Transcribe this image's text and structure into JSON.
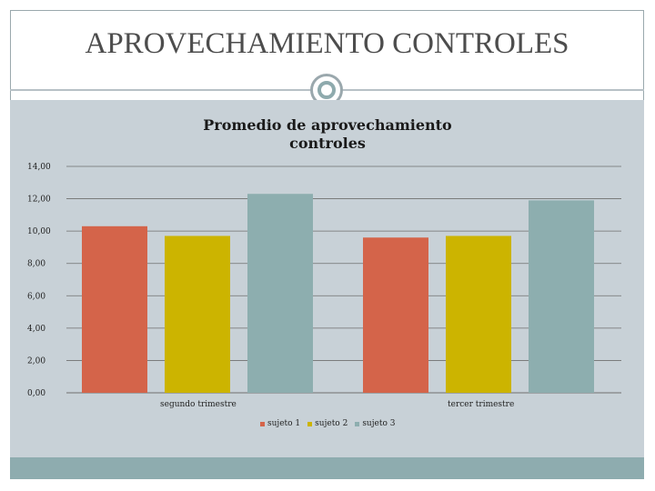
{
  "slide": {
    "title": "APROVECHAMIENTO CONTROLES"
  },
  "chart_data": {
    "type": "bar",
    "title": "Promedio de aprovechamiento controles",
    "categories": [
      "segundo trimestre",
      "tercer trimestre"
    ],
    "series": [
      {
        "name": "sujeto 1",
        "color": "#d4644a",
        "values": [
          10.3,
          9.6
        ]
      },
      {
        "name": "sujeto 2",
        "color": "#ccb400",
        "values": [
          9.7,
          9.7
        ]
      },
      {
        "name": "sujeto 3",
        "color": "#8daeaf",
        "values": [
          12.3,
          11.9
        ]
      }
    ],
    "yticks": [
      "0,00",
      "2,00",
      "4,00",
      "6,00",
      "8,00",
      "10,00",
      "12,00",
      "14,00"
    ],
    "ylim": [
      0,
      14
    ],
    "grid": true,
    "legend_position": "bottom"
  }
}
